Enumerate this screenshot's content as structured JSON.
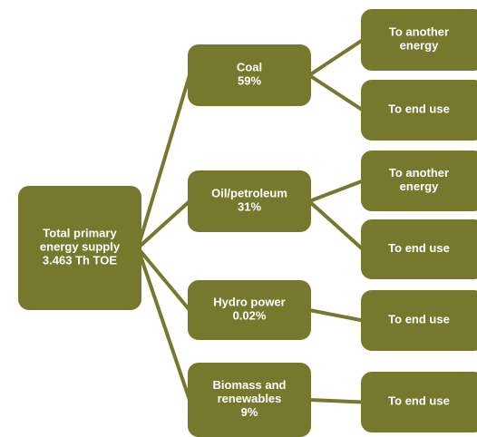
{
  "root": {
    "label": [
      "Total primary",
      "energy supply",
      "3.463 Th TOE"
    ]
  },
  "sources": [
    {
      "label": [
        "Coal",
        "59%"
      ],
      "uses": [
        {
          "label": [
            "To another",
            "energy"
          ]
        },
        {
          "label": [
            "To end use"
          ]
        }
      ]
    },
    {
      "label": [
        "Oil/petroleum",
        "31%"
      ],
      "uses": [
        {
          "label": [
            "To another",
            "energy"
          ]
        },
        {
          "label": [
            "To end use"
          ]
        }
      ]
    },
    {
      "label": [
        "Hydro power",
        "0.02%"
      ],
      "uses": [
        {
          "label": [
            "To end use"
          ]
        }
      ]
    },
    {
      "label": [
        "Biomass and",
        "renewables",
        "9%"
      ],
      "uses": [
        {
          "label": [
            "To end use"
          ]
        }
      ]
    }
  ]
}
